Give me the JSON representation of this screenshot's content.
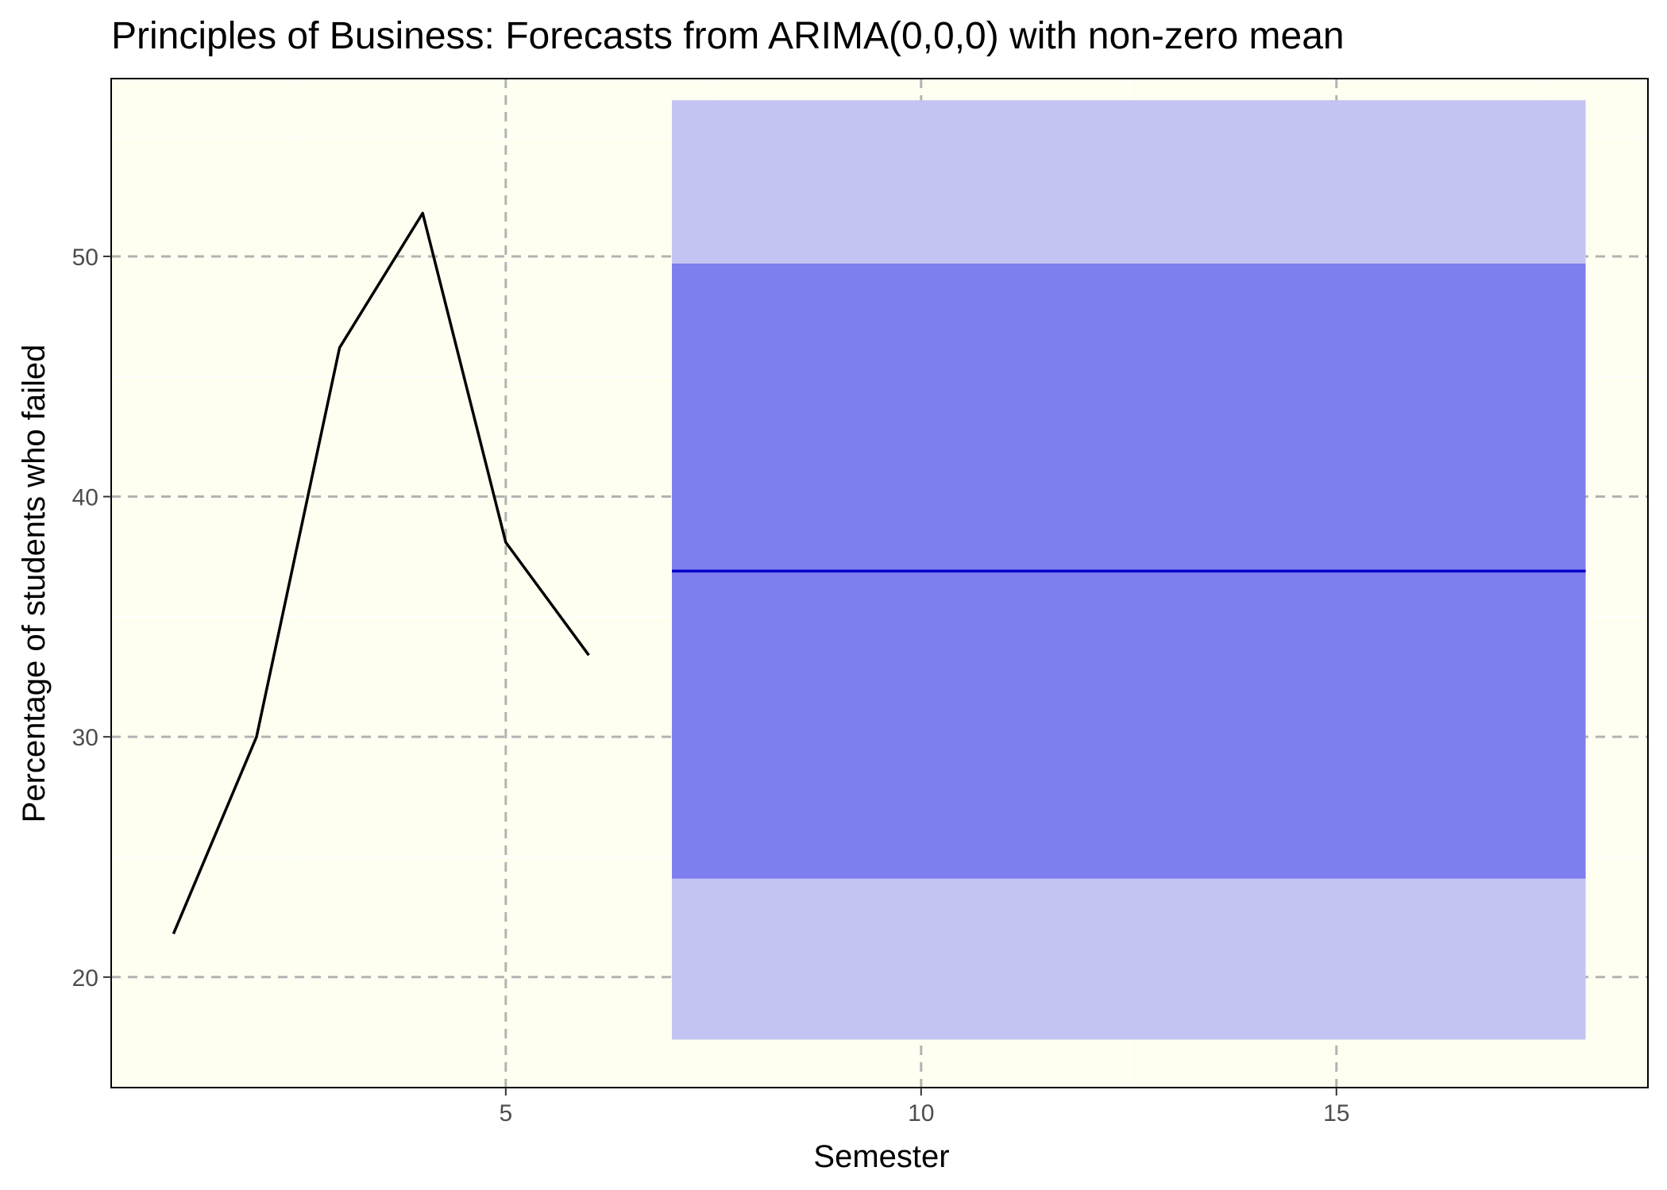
{
  "chart_data": {
    "type": "line",
    "title": "Principles of Business: Forecasts from ARIMA(0,0,0) with non-zero mean",
    "xlabel": "Semester",
    "ylabel": "Percentage of students who failed",
    "xlim": [
      0.25,
      18.75
    ],
    "ylim": [
      15.4,
      57.4
    ],
    "x_ticks": [
      5,
      10,
      15
    ],
    "x_tick_labels": [
      "5",
      "10",
      "15"
    ],
    "y_ticks": [
      20,
      30,
      40,
      50
    ],
    "y_tick_labels": [
      "20",
      "30",
      "40",
      "50"
    ],
    "x_minor_ticks": [
      2.5,
      7.5,
      12.5,
      17.5
    ],
    "y_minor_ticks": [
      25,
      35,
      45,
      55
    ],
    "grid": true,
    "legend": "none",
    "series": [
      {
        "kind": "observed",
        "color": "#000000",
        "x": [
          1,
          2,
          3,
          4,
          5,
          6
        ],
        "y": [
          21.8,
          30.0,
          46.2,
          51.8,
          38.1,
          33.4
        ]
      },
      {
        "kind": "forecast-mean",
        "color": "#0000cc",
        "x": [
          7,
          18
        ],
        "y": [
          36.9,
          36.9
        ]
      }
    ],
    "intervals": [
      {
        "level": 95,
        "color": "#c3c3f4",
        "x": [
          7,
          18
        ],
        "lower": 17.4,
        "upper": 56.5
      },
      {
        "level": 80,
        "color": "#7e7eee",
        "x": [
          7,
          18
        ],
        "lower": 24.1,
        "upper": 49.7
      }
    ],
    "colors": {
      "panel_background": "#fefff0",
      "panel_border": "#000000",
      "major_grid": "#b3b3b3",
      "minor_grid": "#ffffff"
    }
  }
}
